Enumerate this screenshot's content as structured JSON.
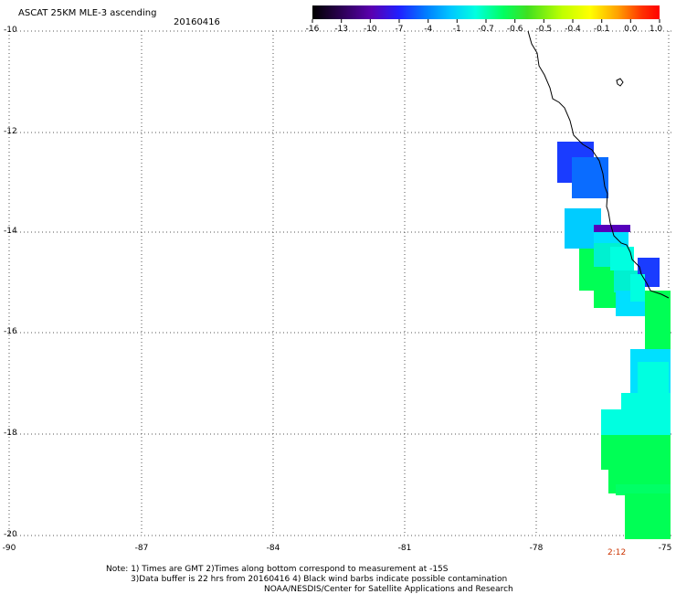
{
  "header": {
    "title": "ASCAT 25KM MLE-3 ascending",
    "date": "20160416"
  },
  "colorbar": {
    "labels": [
      "-16",
      "-13",
      "-10",
      "-7",
      "-4",
      "-1",
      "-0.7",
      "-0.6",
      "-0.5",
      "-0.4",
      "-0.1",
      "0.0",
      "1.0"
    ],
    "colors": [
      "#000000",
      "#2a0050",
      "#5a00b0",
      "#2020ff",
      "#0080ff",
      "#00c8ff",
      "#00ffe0",
      "#00ff60",
      "#40e020",
      "#c0ff00",
      "#ffff00",
      "#ffa000",
      "#ff3000",
      "#ff0000"
    ]
  },
  "axes": {
    "y_labels": [
      "-10",
      "-12",
      "-14",
      "-16",
      "-18",
      "-20"
    ],
    "x_labels": [
      "-90",
      "-87",
      "-84",
      "-81",
      "-78",
      "-75"
    ]
  },
  "time_label": "2:12",
  "notes": {
    "line1": "Note: 1) Times are GMT 2)Times along bottom correspond to measurement at -15S",
    "line2": "3)Data buffer is 22 hrs from 20160416 4) Black wind barbs indicate possible contamination",
    "line3": "NOAA/NESDIS/Center for Satellite Applications and Research"
  }
}
